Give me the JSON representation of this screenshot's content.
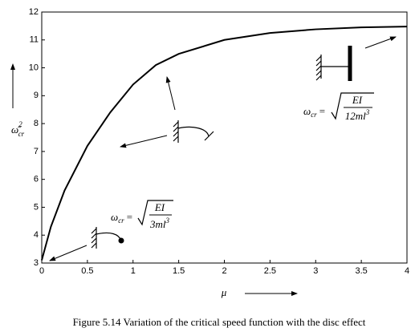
{
  "chart_data": {
    "type": "line",
    "caption": "Figure 5.14 Variation of the critical speed function with the disc effect",
    "xlabel": "μ",
    "ylabel": {
      "symbol": "ω̄",
      "sup": "2",
      "sub": "cr"
    },
    "x": [
      0,
      0.1,
      0.25,
      0.5,
      0.75,
      1,
      1.25,
      1.5,
      2,
      2.5,
      3,
      3.5,
      4
    ],
    "values": [
      3.1,
      4.3,
      5.6,
      7.2,
      8.4,
      9.4,
      10.1,
      10.5,
      11.0,
      11.25,
      11.38,
      11.45,
      11.48
    ],
    "color": "#000000",
    "xlim": [
      0,
      4
    ],
    "ylim": [
      3,
      12
    ],
    "xticks": [
      0,
      0.5,
      1,
      1.5,
      2,
      2.5,
      3,
      3.5,
      4
    ],
    "yticks": [
      3,
      4,
      5,
      6,
      7,
      8,
      9,
      10,
      11,
      12
    ],
    "annotations": [
      {
        "symbol": "ω",
        "sub": "cr",
        "eq": "=",
        "num": "EI",
        "den": "12ml",
        "den_exp": "3"
      },
      {
        "symbol": "ω",
        "sub": "cr",
        "eq": "=",
        "num": "EI",
        "den": "3ml",
        "den_exp": "3"
      }
    ]
  }
}
